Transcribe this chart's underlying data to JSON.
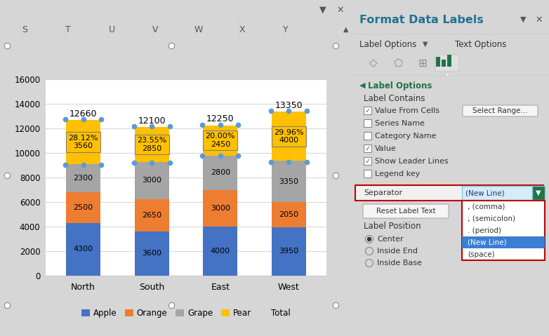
{
  "categories": [
    "North",
    "South",
    "East",
    "West"
  ],
  "series": {
    "Apple": [
      4300,
      3600,
      4000,
      3950
    ],
    "Orange": [
      2500,
      2650,
      3000,
      2050
    ],
    "Grape": [
      2300,
      3000,
      2800,
      3350
    ],
    "Pear": [
      3560,
      2850,
      2450,
      4000
    ]
  },
  "totals": [
    12660,
    12100,
    12250,
    13350
  ],
  "pear_pct": [
    "28.12%",
    "23.55%",
    "20.00%",
    "29.96%"
  ],
  "colors": {
    "Apple": "#4472C4",
    "Orange": "#ED7D31",
    "Grape": "#A5A5A5",
    "Pear": "#FFC000"
  },
  "ylim": [
    0,
    16000
  ],
  "yticks": [
    0,
    2000,
    4000,
    6000,
    8000,
    10000,
    12000,
    14000,
    16000
  ],
  "bar_width": 0.5,
  "fig_bg": "#D6D6D6",
  "chart_area_bg": "#FFFFFF",
  "plot_bg": "#FFFFFF",
  "right_panel_bg": "#F0F0F0",
  "grid_color": "#FFFFFF",
  "right_panel_title": "Format Data Labels",
  "dropdown_items": [
    ", (comma)",
    "; (semicolon)",
    ". (period)",
    "(New Line)",
    "(space)"
  ],
  "checkbox_items": [
    [
      "Value From Cells",
      true
    ],
    [
      "Series Name",
      false
    ],
    [
      "Category Name",
      false
    ],
    [
      "Value",
      true
    ],
    [
      "Show Leader Lines",
      true
    ],
    [
      "Legend key",
      false
    ]
  ],
  "radio_items": [
    "Center",
    "Inside End",
    "Inside Base"
  ],
  "radio_selected": 0
}
